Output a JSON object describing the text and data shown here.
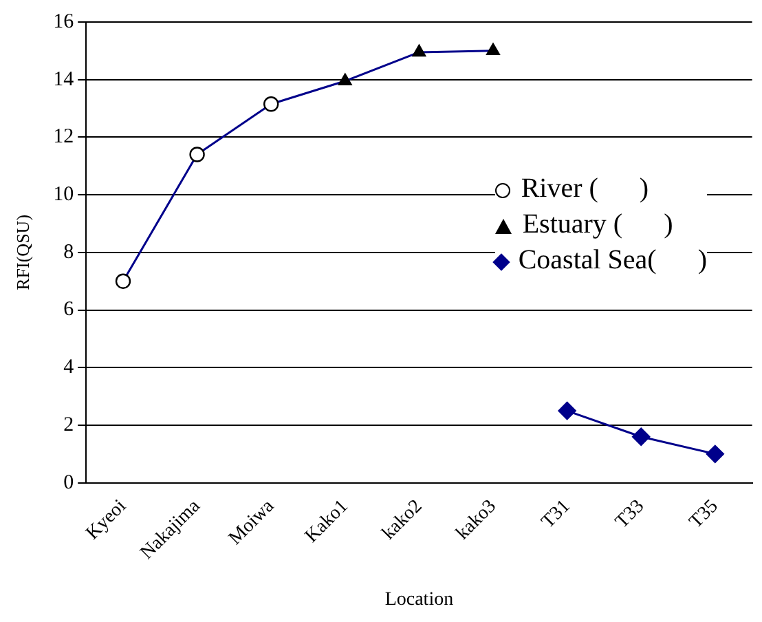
{
  "chart_data": {
    "type": "line",
    "xlabel": "Location",
    "ylabel": "RFI(QSU)",
    "categories": [
      "Kyeoi",
      "Nakajima",
      "Moiwa",
      "Kako1",
      "kako2",
      "kako3",
      "T31",
      "T33",
      "T35"
    ],
    "series": [
      {
        "type": "line",
        "color": "#00008b",
        "marker": "none",
        "values": [
          7.0,
          11.4,
          13.15,
          13.95,
          14.95,
          15.0,
          null,
          null,
          null
        ]
      },
      {
        "type": "line",
        "color": "#00008b",
        "marker": "none",
        "values": [
          null,
          null,
          null,
          null,
          null,
          null,
          2.5,
          1.6,
          1.0
        ]
      },
      {
        "type": "scatter",
        "name": "River (      )",
        "color": "#000000",
        "marker": "circle",
        "values": [
          7.0,
          11.4,
          13.15,
          null,
          null,
          null,
          null,
          null,
          null
        ]
      },
      {
        "type": "scatter",
        "name": "Estuary (      )",
        "color": "#000000",
        "marker": "triangle",
        "values": [
          null,
          null,
          null,
          13.95,
          14.95,
          15.0,
          null,
          null,
          null
        ]
      },
      {
        "type": "scatter",
        "name": "Coastal Sea(      )",
        "color": "#00008b",
        "marker": "diamond",
        "values": [
          null,
          null,
          null,
          null,
          null,
          null,
          2.5,
          1.6,
          1.0
        ]
      }
    ],
    "ylim": [
      0,
      16
    ],
    "yticks": [
      0,
      2,
      4,
      6,
      8,
      10,
      12,
      14,
      16
    ],
    "grid": "y",
    "legend": "right"
  }
}
